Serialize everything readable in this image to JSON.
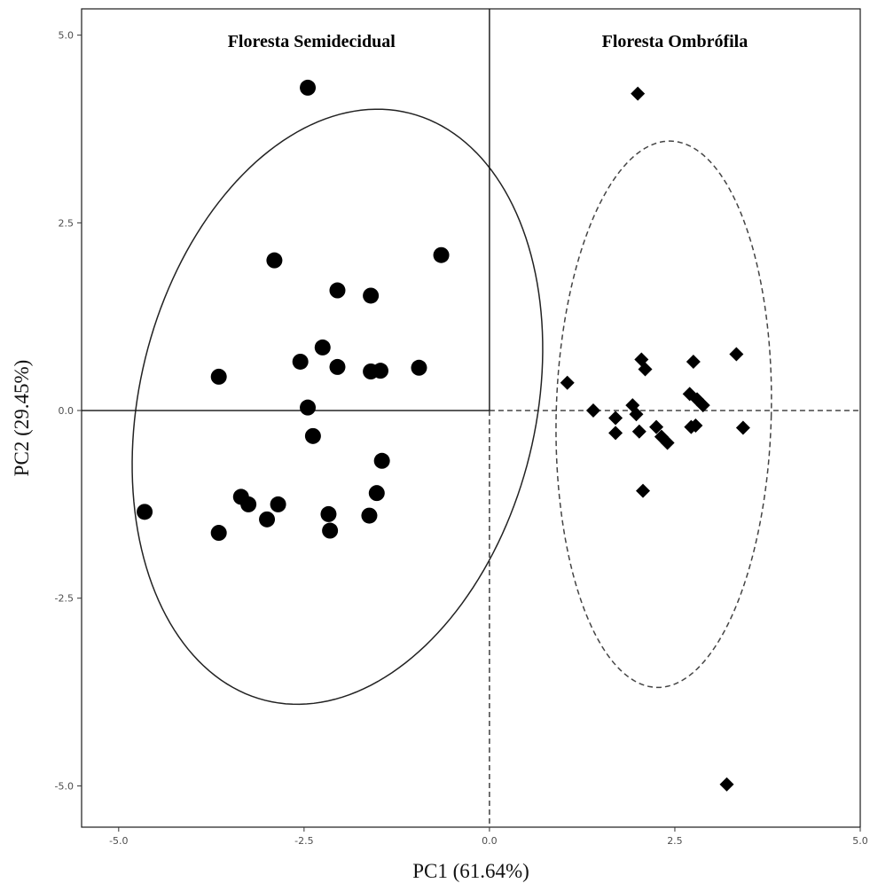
{
  "chart_data": {
    "type": "scatter",
    "xlabel": "PC1 (61.64%)",
    "ylabel": "PC2 (29.45%)",
    "xlim": [
      -5.5,
      5.0
    ],
    "ylim": [
      -5.55,
      5.35
    ],
    "xticks": [
      -5.0,
      -2.5,
      0.0,
      2.5,
      5.0
    ],
    "yticks": [
      -5.0,
      -2.5,
      0.0,
      2.5,
      5.0
    ],
    "xtick_labels": [
      "-5.0",
      "-2.5",
      "0.0",
      "2.5",
      "5.0"
    ],
    "ytick_labels": [
      "-5.0",
      "-2.5",
      "0.0",
      "2.5",
      "5.0"
    ],
    "grid": false,
    "reference_lines": {
      "x": 0.0,
      "y": 0.0
    },
    "series": [
      {
        "name": "Floresta Semidecidual",
        "marker": "circle",
        "color": "#000000",
        "ellipse_style": "solid",
        "points": [
          [
            -2.45,
            4.3
          ],
          [
            -2.9,
            2.0
          ],
          [
            -0.65,
            2.07
          ],
          [
            -2.05,
            1.6
          ],
          [
            -1.6,
            1.53
          ],
          [
            -2.25,
            0.84
          ],
          [
            -2.55,
            0.65
          ],
          [
            -2.05,
            0.58
          ],
          [
            -1.6,
            0.52
          ],
          [
            -1.47,
            0.53
          ],
          [
            -0.95,
            0.57
          ],
          [
            -3.65,
            0.45
          ],
          [
            -2.45,
            0.04
          ],
          [
            -2.38,
            -0.34
          ],
          [
            -1.45,
            -0.67
          ],
          [
            -1.52,
            -1.1
          ],
          [
            -3.35,
            -1.15
          ],
          [
            -3.25,
            -1.25
          ],
          [
            -2.85,
            -1.25
          ],
          [
            -4.65,
            -1.35
          ],
          [
            -3.0,
            -1.45
          ],
          [
            -2.17,
            -1.38
          ],
          [
            -1.62,
            -1.4
          ],
          [
            -2.15,
            -1.6
          ],
          [
            -3.65,
            -1.63
          ]
        ],
        "ellipse": {
          "cx": -2.05,
          "cy": 0.05,
          "rx": 2.67,
          "ry": 4.03,
          "angle_deg": -14
        }
      },
      {
        "name": "Floresta Ombrófila",
        "marker": "diamond",
        "color": "#000000",
        "ellipse_style": "dashed",
        "points": [
          [
            2.0,
            4.22
          ],
          [
            3.33,
            0.75
          ],
          [
            2.05,
            0.68
          ],
          [
            2.75,
            0.65
          ],
          [
            2.1,
            0.55
          ],
          [
            1.05,
            0.37
          ],
          [
            2.7,
            0.22
          ],
          [
            2.8,
            0.15
          ],
          [
            2.88,
            0.07
          ],
          [
            1.93,
            0.07
          ],
          [
            1.4,
            0.0
          ],
          [
            1.98,
            -0.05
          ],
          [
            1.7,
            -0.1
          ],
          [
            2.25,
            -0.22
          ],
          [
            2.72,
            -0.22
          ],
          [
            2.78,
            -0.2
          ],
          [
            3.42,
            -0.23
          ],
          [
            1.7,
            -0.3
          ],
          [
            2.02,
            -0.28
          ],
          [
            2.32,
            -0.35
          ],
          [
            2.4,
            -0.43
          ],
          [
            2.07,
            -1.07
          ],
          [
            3.2,
            -4.98
          ]
        ],
        "ellipse": {
          "cx": 2.35,
          "cy": -0.05,
          "rx": 1.45,
          "ry": 3.64,
          "angle_deg": -1.5
        }
      }
    ]
  }
}
